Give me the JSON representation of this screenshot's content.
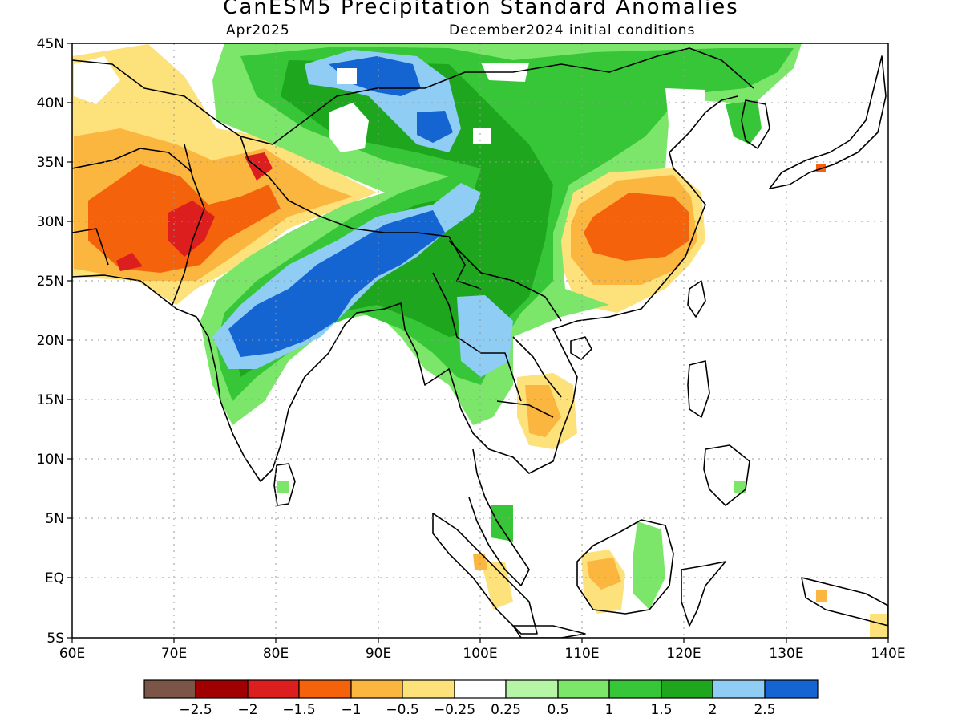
{
  "title": "CanESM5 Precipitation Standard Anomalies",
  "subtitle_left": "Apr2025",
  "subtitle_right": "December2024 initial conditions",
  "lat_labels": [
    "45N",
    "40N",
    "35N",
    "30N",
    "25N",
    "20N",
    "15N",
    "10N",
    "5N",
    "EQ",
    "5S"
  ],
  "lon_labels": [
    "60E",
    "70E",
    "80E",
    "90E",
    "100E",
    "110E",
    "120E",
    "130E",
    "140E"
  ],
  "colorbar": {
    "colors": [
      "#7b5548",
      "#a10000",
      "#dc1e1e",
      "#f5620c",
      "#fbb640",
      "#fde17a",
      "#ffffff",
      "#b6f5a6",
      "#7ce66b",
      "#37c637",
      "#1fa61f",
      "#90cdf5",
      "#1464d2"
    ],
    "labels": [
      "−2.5",
      "−2",
      "−1.5",
      "−1",
      "−0.5",
      "−0.25",
      "0.25",
      "0.5",
      "1",
      "1.5",
      "2",
      "2.5"
    ]
  }
}
